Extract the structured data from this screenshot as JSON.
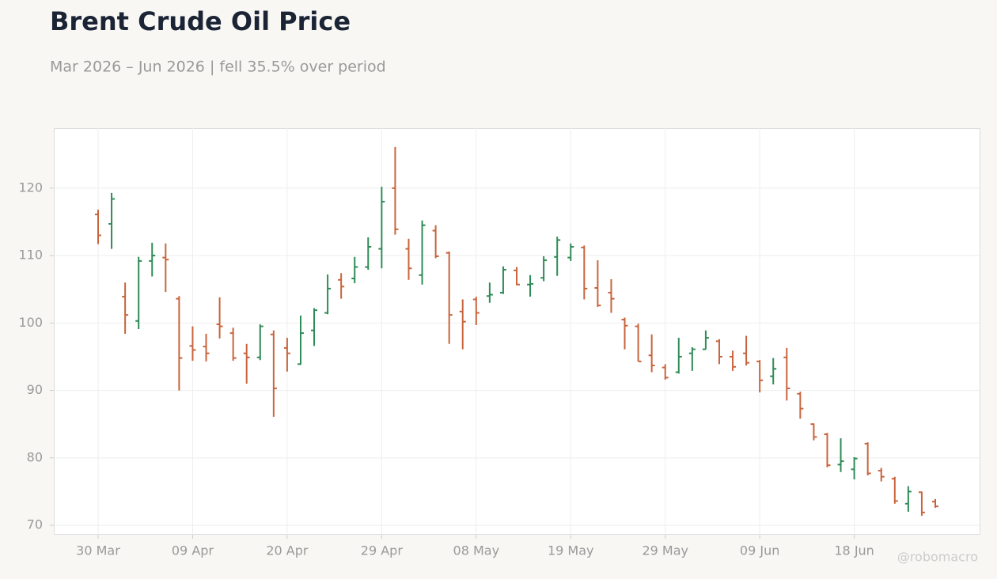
{
  "chart_data": {
    "type": "ohlc",
    "title": "Brent Crude Oil Price",
    "subtitle": "Mar 2026 – Jun 2026 | fell 35.5% over period",
    "watermark": "@robomacro",
    "categories": [
      "30 Mar",
      "31 Mar",
      "01 Apr",
      "02 Apr",
      "06 Apr",
      "07 Apr",
      "08 Apr",
      "09 Apr",
      "10 Apr",
      "13 Apr",
      "14 Apr",
      "15 Apr",
      "16 Apr",
      "17 Apr",
      "20 Apr",
      "21 Apr",
      "22 Apr",
      "23 Apr",
      "24 Apr",
      "27 Apr",
      "28 Apr",
      "29 Apr",
      "30 Apr",
      "01 May",
      "04 May",
      "05 May",
      "06 May",
      "07 May",
      "08 May",
      "11 May",
      "12 May",
      "13 May",
      "14 May",
      "15 May",
      "18 May",
      "19 May",
      "20 May",
      "21 May",
      "22 May",
      "26 May",
      "27 May",
      "28 May",
      "29 May",
      "01 Jun",
      "02 Jun",
      "03 Jun",
      "04 Jun",
      "05 Jun",
      "08 Jun",
      "09 Jun",
      "10 Jun",
      "11 Jun",
      "12 Jun",
      "15 Jun",
      "16 Jun",
      "17 Jun",
      "18 Jun",
      "19 Jun",
      "22 Jun",
      "23 Jun",
      "24 Jun",
      "25 Jun",
      "26 Jun"
    ],
    "open": [
      116.1,
      114.7,
      103.9,
      100.3,
      109.2,
      109.7,
      103.6,
      96.6,
      96.5,
      99.8,
      98.5,
      95.5,
      94.9,
      98.3,
      96.3,
      93.9,
      98.9,
      101.5,
      106.4,
      106.6,
      108.3,
      111.0,
      120.0,
      111.0,
      107.1,
      113.7,
      110.4,
      101.7,
      103.5,
      104.0,
      104.5,
      107.8,
      105.7,
      106.7,
      109.8,
      109.7,
      111.2,
      105.2,
      104.5,
      100.5,
      99.5,
      95.2,
      93.4,
      92.7,
      95.5,
      96.1,
      97.3,
      95.0,
      95.5,
      94.3,
      92.1,
      94.9,
      89.5,
      85.0,
      83.5,
      79.0,
      78.3,
      82.1,
      78.1,
      76.9,
      73.2,
      74.9,
      73.5
    ],
    "high": [
      116.8,
      119.3,
      106.0,
      109.8,
      111.9,
      111.8,
      104.0,
      99.5,
      98.4,
      103.8,
      99.3,
      96.9,
      99.8,
      98.9,
      97.8,
      101.1,
      102.2,
      107.2,
      107.4,
      109.8,
      112.7,
      120.2,
      126.1,
      112.5,
      115.2,
      114.5,
      110.6,
      103.5,
      103.9,
      106.0,
      108.4,
      108.3,
      107.1,
      109.9,
      112.8,
      111.8,
      111.5,
      109.3,
      106.5,
      100.8,
      99.9,
      98.3,
      93.9,
      97.8,
      96.4,
      98.9,
      97.6,
      95.9,
      98.1,
      94.5,
      94.8,
      96.3,
      89.8,
      85.1,
      83.7,
      82.9,
      80.1,
      82.3,
      78.5,
      77.2,
      75.8,
      75.0,
      73.9
    ],
    "low": [
      111.7,
      111.0,
      98.4,
      99.1,
      106.9,
      104.6,
      90.0,
      94.4,
      94.3,
      97.7,
      94.4,
      91.0,
      94.5,
      86.1,
      92.8,
      93.8,
      96.6,
      101.3,
      103.6,
      105.9,
      107.9,
      108.1,
      113.1,
      106.4,
      105.7,
      109.6,
      96.9,
      96.1,
      99.7,
      103.0,
      104.3,
      105.6,
      103.9,
      106.2,
      107.0,
      109.2,
      103.5,
      102.4,
      101.5,
      96.1,
      94.3,
      92.7,
      91.6,
      92.5,
      92.9,
      96.1,
      93.9,
      92.9,
      93.7,
      89.7,
      90.9,
      88.5,
      85.8,
      82.6,
      78.6,
      77.9,
      76.8,
      77.4,
      76.5,
      73.2,
      72.0,
      71.4,
      72.6
    ],
    "close": [
      113.0,
      118.4,
      101.2,
      109.2,
      110.0,
      109.4,
      94.8,
      96.0,
      95.5,
      99.5,
      94.8,
      94.9,
      99.5,
      90.3,
      95.5,
      98.5,
      101.9,
      105.1,
      105.4,
      108.3,
      111.3,
      118.0,
      113.9,
      108.1,
      114.5,
      109.9,
      101.2,
      100.2,
      101.5,
      104.2,
      107.9,
      105.7,
      105.8,
      109.3,
      112.3,
      111.3,
      105.1,
      102.6,
      103.6,
      99.6,
      94.3,
      93.7,
      91.9,
      95.0,
      96.1,
      97.8,
      95.0,
      93.5,
      94.1,
      91.5,
      93.2,
      90.3,
      87.3,
      83.1,
      78.9,
      79.5,
      79.9,
      77.7,
      77.2,
      73.6,
      75.0,
      71.9,
      72.8
    ],
    "up_color": "#2e8b57",
    "down_color": "#c8643c",
    "ylim": [
      68.6,
      128.9
    ],
    "yticks": [
      70,
      80,
      90,
      100,
      110,
      120
    ],
    "xticks": [
      "30 Mar",
      "09 Apr",
      "20 Apr",
      "29 Apr",
      "08 May",
      "19 May",
      "29 May",
      "09 Jun",
      "18 Jun"
    ],
    "grid": true
  }
}
